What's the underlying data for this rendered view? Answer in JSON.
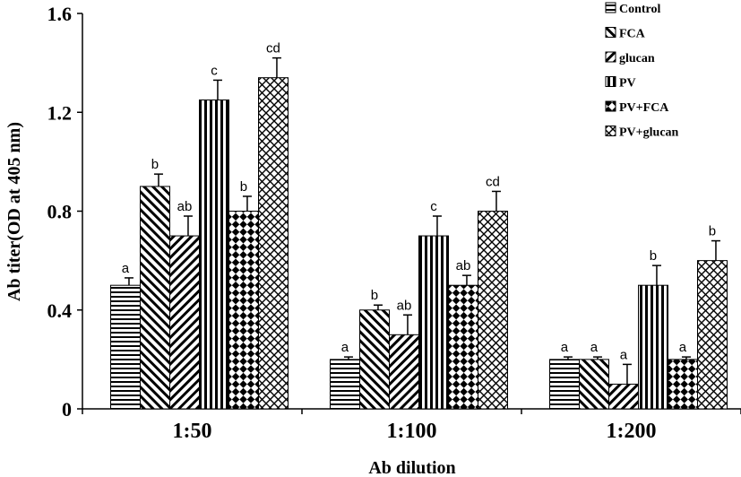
{
  "chart_data": {
    "type": "bar",
    "title": "",
    "xlabel": "Ab dilution",
    "ylabel": "Ab titer(OD at 405 nm)",
    "ylim": [
      0,
      1.6
    ],
    "yticks": [
      0,
      0.4,
      0.8,
      1.2,
      1.6
    ],
    "ytick_labels": [
      "0",
      "0.4",
      "0.8",
      "1.2",
      "1.6"
    ],
    "categories": [
      "1:50",
      "1:100",
      "1:200"
    ],
    "grid": false,
    "legend_position": "top-right",
    "series": [
      {
        "name": "Control",
        "pattern": "hlines",
        "values": [
          0.5,
          0.2,
          0.2
        ],
        "errors": [
          0.03,
          0.01,
          0.01
        ],
        "labels": [
          "a",
          "a",
          "a"
        ]
      },
      {
        "name": "FCA",
        "pattern": "diag-right",
        "values": [
          0.9,
          0.4,
          0.2
        ],
        "errors": [
          0.05,
          0.02,
          0.01
        ],
        "labels": [
          "b",
          "b",
          "a"
        ]
      },
      {
        "name": "glucan",
        "pattern": "diag-left",
        "values": [
          0.7,
          0.3,
          0.1
        ],
        "errors": [
          0.08,
          0.08,
          0.08
        ],
        "labels": [
          "ab",
          "ab",
          "a"
        ]
      },
      {
        "name": "PV",
        "pattern": "vlines",
        "values": [
          1.25,
          0.7,
          0.5
        ],
        "errors": [
          0.08,
          0.08,
          0.08
        ],
        "labels": [
          "c",
          "c",
          "b"
        ]
      },
      {
        "name": "PV+FCA",
        "pattern": "checker",
        "values": [
          0.8,
          0.5,
          0.2
        ],
        "errors": [
          0.06,
          0.04,
          0.01
        ],
        "labels": [
          "b",
          "ab",
          "a"
        ]
      },
      {
        "name": "PV+glucan",
        "pattern": "crosshatch",
        "values": [
          1.34,
          0.8,
          0.6
        ],
        "errors": [
          0.08,
          0.08,
          0.08
        ],
        "labels": [
          "cd",
          "cd",
          "b"
        ]
      }
    ],
    "colors": {
      "bar_fill": "#ffffff",
      "stroke": "#000000"
    }
  }
}
